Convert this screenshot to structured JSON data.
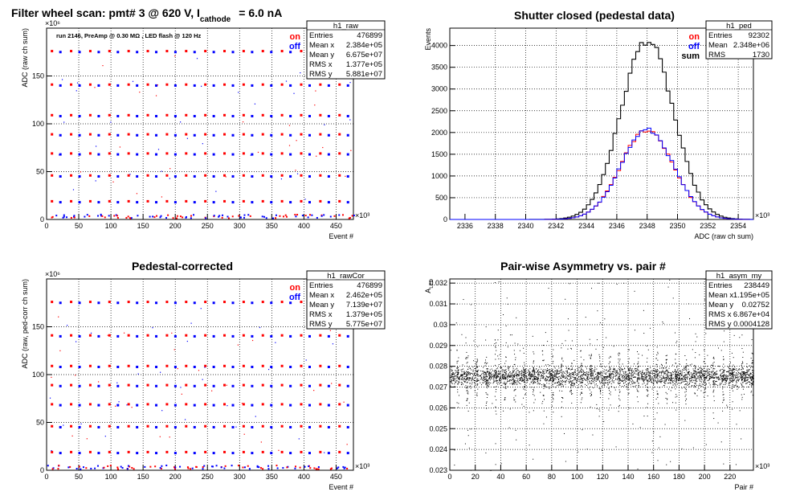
{
  "chart_data": [
    {
      "id": "raw",
      "type": "scatter",
      "title": "Filter wheel scan: pmt#   3 @   620 V, I",
      "title_subscript": "cathode",
      "title_suffix": "= 6.0 nA",
      "annotation": "run 2146, PreAmp @ 0.30 MΩ , LED flash @  120 Hz",
      "xlabel": "Event #",
      "ylabel": "ADC (raw ch sum)",
      "x_exponent": "×10³",
      "y_exponent": "×10⁶",
      "xlim": [
        0,
        476.9
      ],
      "ylim": [
        0,
        200
      ],
      "xticks": [
        0,
        50,
        100,
        150,
        200,
        250,
        300,
        350,
        400,
        450
      ],
      "yticks": [
        0,
        50,
        100,
        150
      ],
      "grid": true,
      "legend": [
        {
          "label": "on",
          "color": "#ff0000"
        },
        {
          "label": "off",
          "color": "#0000ff"
        }
      ],
      "stats": {
        "name": "h1_raw",
        "rows": [
          [
            "Entries",
            "476899"
          ],
          [
            "Mean x",
            "2.384e+05"
          ],
          [
            "Mean y",
            "6.675e+07"
          ],
          [
            "RMS x",
            "1.377e+05"
          ],
          [
            "RMS y",
            "5.881e+07"
          ]
        ]
      },
      "levels": [
        0,
        18,
        45,
        68,
        88,
        108,
        140,
        175
      ],
      "steps": 16,
      "step_width": 29.8
    },
    {
      "id": "ped",
      "type": "histogram",
      "title": "Shutter closed (pedestal data)",
      "xlabel": "ADC (raw ch sum)",
      "ylabel": "Events",
      "x_exponent": "×10³",
      "xlim": [
        2335,
        2355
      ],
      "ylim": [
        0,
        4400
      ],
      "xticks": [
        2336,
        2338,
        2340,
        2342,
        2344,
        2346,
        2348,
        2350,
        2352,
        2354
      ],
      "yticks": [
        0,
        500,
        1000,
        1500,
        2000,
        2500,
        3000,
        3500,
        4000
      ],
      "grid": true,
      "legend": [
        {
          "label": "on",
          "color": "#ff0000"
        },
        {
          "label": "off",
          "color": "#0000ff"
        },
        {
          "label": "sum",
          "color": "#000000"
        }
      ],
      "stats": {
        "name": "h1_ped",
        "rows": [
          [
            "Entries",
            "92302"
          ],
          [
            "Mean",
            "2.348e+06"
          ],
          [
            "RMS",
            "1730"
          ]
        ]
      },
      "mean": 2348,
      "sigma": 1.73,
      "peak_sum": 4120,
      "peak_half": 2060
    },
    {
      "id": "rawCor",
      "type": "scatter",
      "title": "Pedestal-corrected",
      "xlabel": "Event #",
      "ylabel": "ADC (raw, ped-corr ch sum)",
      "x_exponent": "×10³",
      "y_exponent": "×10⁶",
      "xlim": [
        0,
        476.9
      ],
      "ylim": [
        0,
        200
      ],
      "xticks": [
        0,
        50,
        100,
        150,
        200,
        250,
        300,
        350,
        400,
        450
      ],
      "yticks": [
        0,
        50,
        100,
        150
      ],
      "grid": true,
      "legend": [
        {
          "label": "on",
          "color": "#ff0000"
        },
        {
          "label": "off",
          "color": "#0000ff"
        }
      ],
      "stats": {
        "name": "h1_rawCor",
        "rows": [
          [
            "Entries",
            "476899"
          ],
          [
            "Mean x",
            "2.462e+05"
          ],
          [
            "Mean y",
            "7.139e+07"
          ],
          [
            "RMS x",
            "1.379e+05"
          ],
          [
            "RMS y",
            "5.775e+07"
          ]
        ]
      },
      "levels": [
        0,
        18,
        45,
        68,
        88,
        108,
        140,
        175
      ],
      "steps": 16,
      "step_width": 29.8
    },
    {
      "id": "asym",
      "type": "scatter",
      "title": "Pair-wise Asymmetry vs. pair #",
      "xlabel": "Pair #",
      "ylabel": "A",
      "ylabel_subscript": "LED",
      "x_exponent": "×10³",
      "xlim": [
        0,
        238.4
      ],
      "ylim": [
        0.023,
        0.0322
      ],
      "xticks": [
        0,
        20,
        40,
        60,
        80,
        100,
        120,
        140,
        160,
        180,
        200,
        220
      ],
      "yticks": [
        0.023,
        0.024,
        0.025,
        0.026,
        0.027,
        0.028,
        0.029,
        0.03,
        0.031,
        0.032
      ],
      "grid": true,
      "stats": {
        "name": "h1_asym_my",
        "rows": [
          [
            "Entries",
            "238449"
          ],
          [
            "Mean x",
            "1.195e+05"
          ],
          [
            "Mean y",
            "0.02752"
          ],
          [
            "RMS x",
            "6.867e+04"
          ],
          [
            "RMS y",
            "0.0004128"
          ]
        ]
      },
      "center": 0.02752,
      "rms": 0.00041
    }
  ]
}
